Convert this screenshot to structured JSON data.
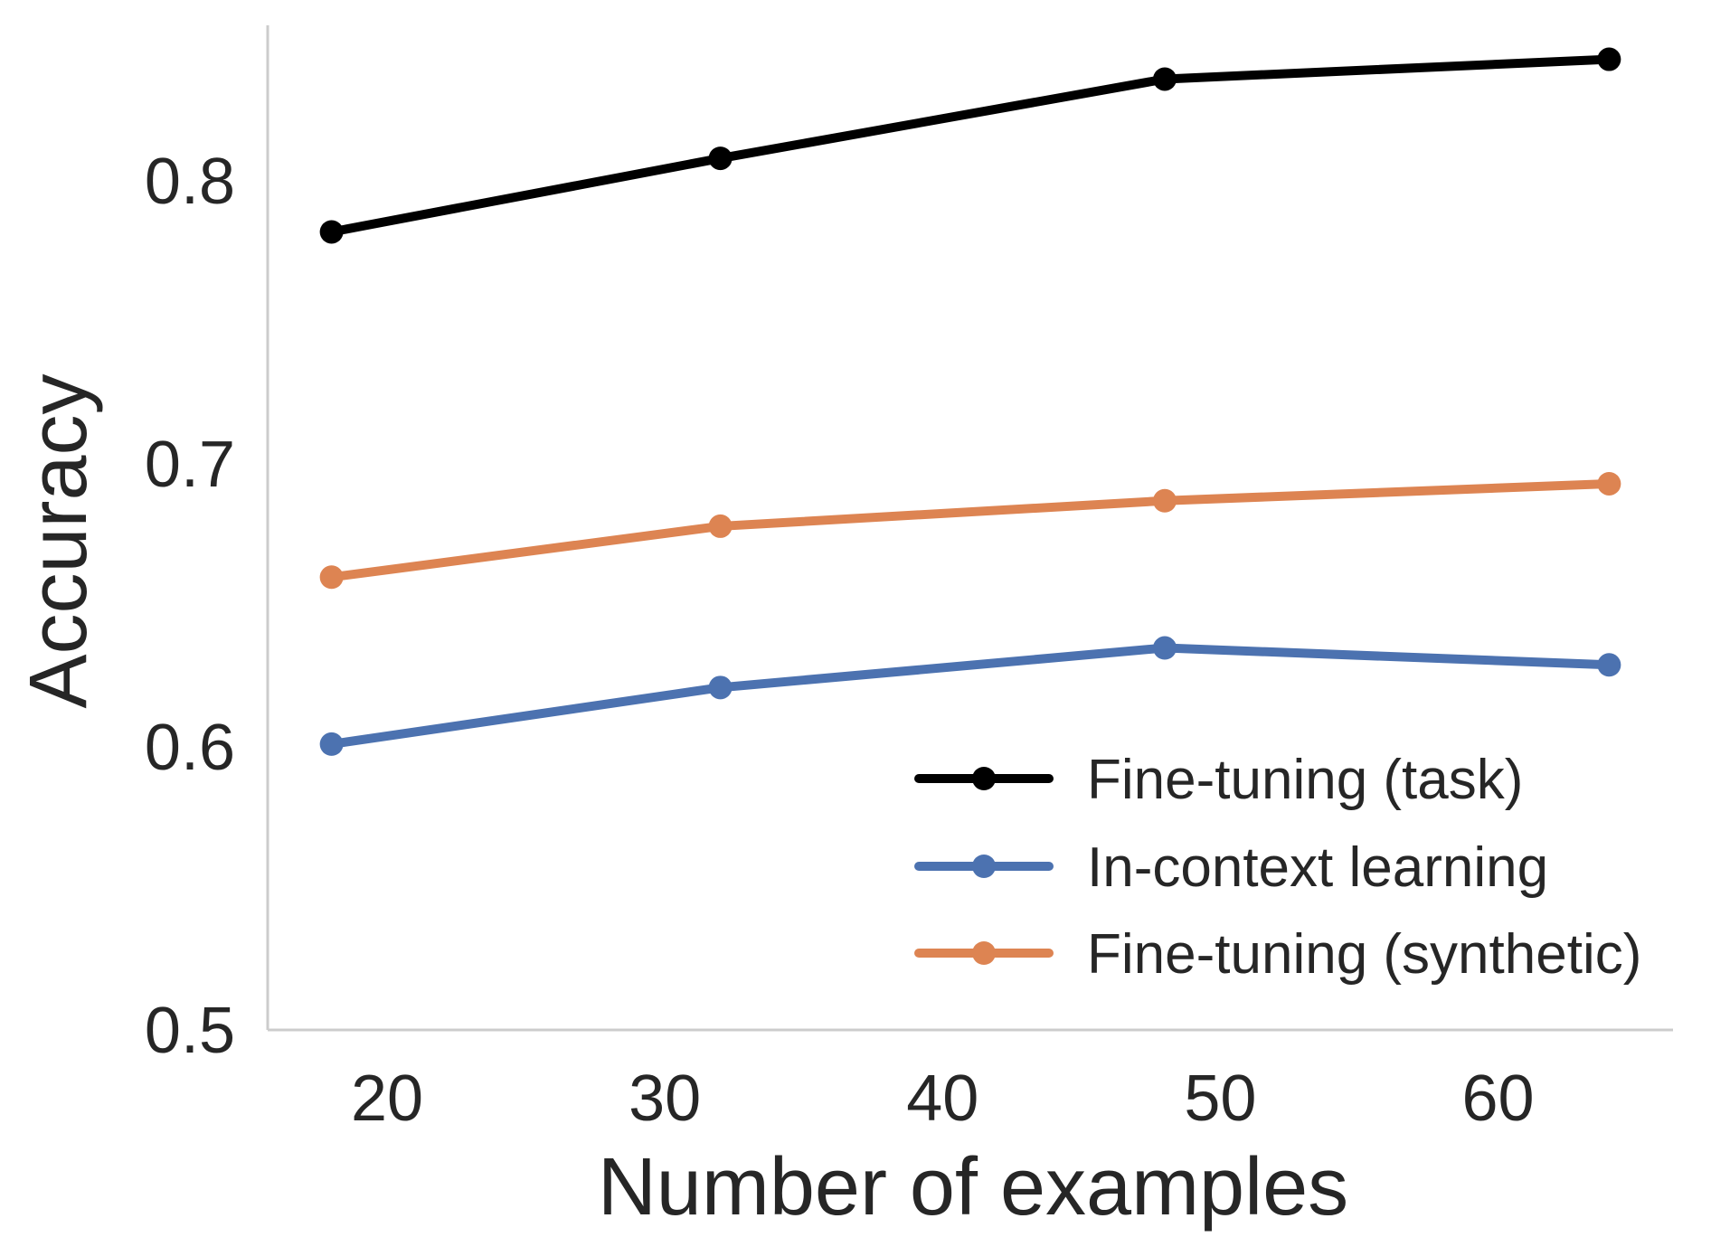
{
  "chart_data": {
    "type": "line",
    "title": "",
    "xlabel": "Number of examples",
    "ylabel": "Accuracy",
    "xlim": [
      15.7,
      66.3
    ],
    "ylim": [
      0.5,
      0.855
    ],
    "xticks": [
      20,
      30,
      40,
      50,
      60
    ],
    "xtick_labels": [
      "20",
      "30",
      "40",
      "50",
      "60"
    ],
    "yticks": [
      0.5,
      0.6,
      0.7,
      0.8
    ],
    "ytick_labels": [
      "0.5",
      "0.6",
      "0.7",
      "0.8"
    ],
    "grid": false,
    "legend_position": "lower-right",
    "x": [
      18,
      32,
      48,
      64
    ],
    "series": [
      {
        "name": "Fine-tuning (task)",
        "color": "#000000",
        "values": [
          0.782,
          0.808,
          0.836,
          0.843
        ]
      },
      {
        "name": "In-context learning",
        "color": "#4c72b0",
        "values": [
          0.601,
          0.621,
          0.635,
          0.629
        ]
      },
      {
        "name": "Fine-tuning (synthetic)",
        "color": "#dd8452",
        "values": [
          0.66,
          0.678,
          0.687,
          0.693
        ]
      }
    ],
    "axis_color": "#cccccc",
    "text_color": "#262626"
  }
}
